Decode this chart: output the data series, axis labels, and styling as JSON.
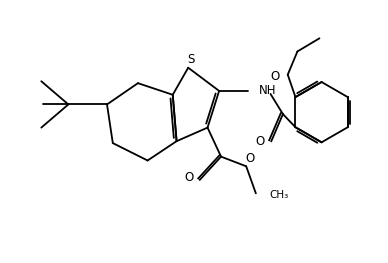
{
  "figsize": [
    3.88,
    2.63
  ],
  "dpi": 100,
  "bg_color": "#ffffff",
  "lc": "#000000",
  "lw": 1.3,
  "dbo": 0.06,
  "xlim": [
    0.0,
    10.0
  ],
  "ylim": [
    0.5,
    7.2
  ]
}
